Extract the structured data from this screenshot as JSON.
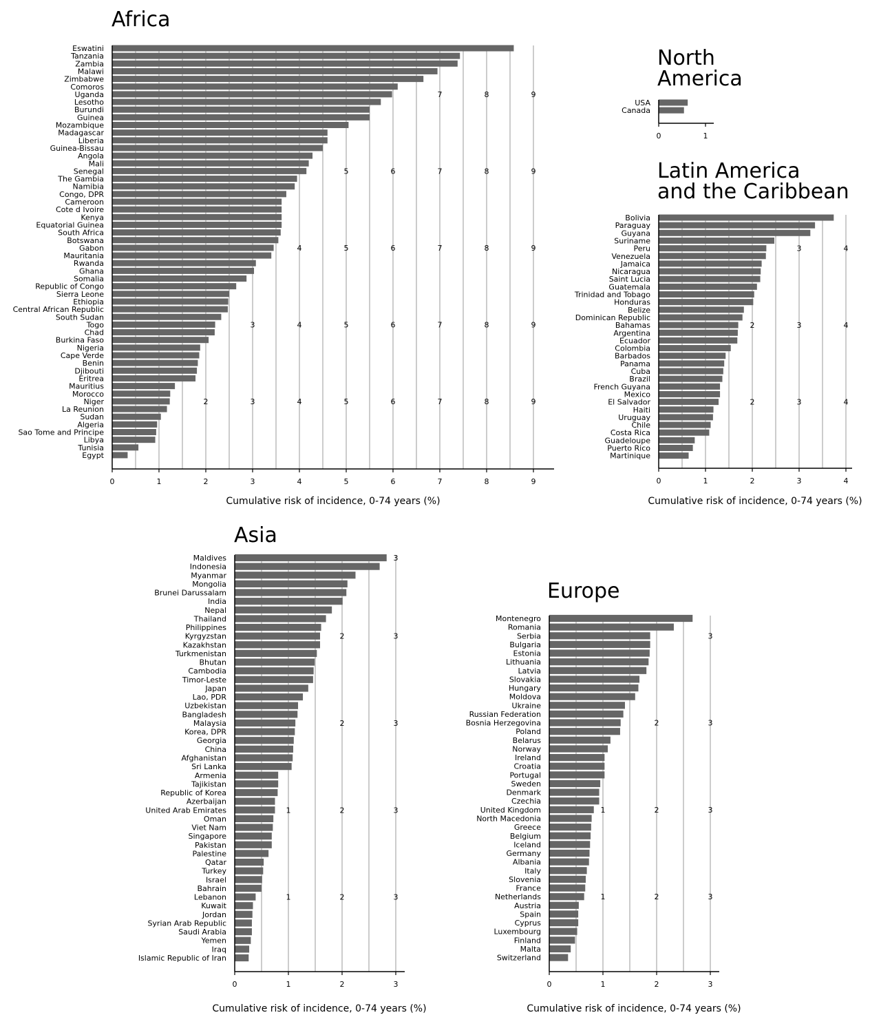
{
  "figure": {
    "colors": {
      "bar": "#666666",
      "grid": "#bfbfbf",
      "axis": "#000000",
      "background": "#ffffff"
    }
  },
  "chart_data": [
    {
      "type": "bar",
      "orientation": "horizontal",
      "title": "Africa",
      "xlabel": "Cumulative risk of incidence, 0-74 years (%)",
      "xlim": [
        0,
        9.3
      ],
      "xticks": [
        0,
        1,
        2,
        3,
        4,
        5,
        6,
        7,
        8,
        9
      ],
      "gridlines": [
        0.5,
        1,
        1.5,
        2,
        2.5,
        3,
        3.5,
        4,
        4.5,
        5,
        5.5,
        6,
        6.5,
        7,
        7.5,
        8,
        8.5,
        9
      ],
      "inline_tick_labels": [
        {
          "after_category": "Uganda",
          "labels": [
            7,
            8,
            9
          ]
        },
        {
          "after_category": "Senegal",
          "labels": [
            5,
            6,
            7,
            8,
            9
          ]
        },
        {
          "after_category": "Gabon",
          "labels": [
            4,
            5,
            6,
            7,
            8,
            9
          ]
        },
        {
          "after_category": "Togo",
          "labels": [
            3,
            4,
            5,
            6,
            7,
            8,
            9
          ]
        },
        {
          "after_category": "Niger",
          "labels": [
            2,
            3,
            4,
            5,
            6,
            7,
            8,
            9
          ]
        }
      ],
      "categories": [
        "Eswatini",
        "Tanzania",
        "Zambia",
        "Malawi",
        "Zimbabwe",
        "Comoros",
        "Uganda",
        "Lesotho",
        "Burundi",
        "Guinea",
        "Mozambique",
        "Madagascar",
        "Liberia",
        "Guinea-Bissau",
        "Angola",
        "Mali",
        "Senegal",
        "The Gambia",
        "Namibia",
        "Congo, DPR",
        "Cameroon",
        "Cote d Ivoire",
        "Kenya",
        "Equatorial Guinea",
        "South Africa",
        "Botswana",
        "Gabon",
        "Mauritania",
        "Rwanda",
        "Ghana",
        "Somalia",
        "Republic of Congo",
        "Sierra Leone",
        "Ethiopia",
        "Central African Republic",
        "South Sudan",
        "Togo",
        "Chad",
        "Burkina Faso",
        "Nigeria",
        "Cape Verde",
        "Benin",
        "Djibouti",
        "Eritrea",
        "Mauritius",
        "Morocco",
        "Niger",
        "La Reunion",
        "Sudan",
        "Algeria",
        "Sao Tome and Principe",
        "Libya",
        "Tunisia",
        "Egypt"
      ],
      "values": [
        8.58,
        7.43,
        7.38,
        6.95,
        6.65,
        6.1,
        5.98,
        5.74,
        5.5,
        5.5,
        5.05,
        4.6,
        4.6,
        4.5,
        4.28,
        4.2,
        4.15,
        3.95,
        3.9,
        3.72,
        3.62,
        3.62,
        3.62,
        3.62,
        3.6,
        3.55,
        3.45,
        3.4,
        3.07,
        3.03,
        2.87,
        2.65,
        2.5,
        2.48,
        2.47,
        2.33,
        2.2,
        2.19,
        2.06,
        1.88,
        1.86,
        1.83,
        1.81,
        1.78,
        1.34,
        1.24,
        1.23,
        1.17,
        1.04,
        0.96,
        0.94,
        0.92,
        0.56,
        0.33
      ]
    },
    {
      "type": "bar",
      "orientation": "horizontal",
      "title": "North\nAmerica",
      "xlabel": "",
      "xlim": [
        0,
        1.17
      ],
      "xticks": [
        0,
        1
      ],
      "gridlines": [],
      "inline_tick_labels": [],
      "categories": [
        "USA",
        "Canada"
      ],
      "values": [
        0.62,
        0.54
      ]
    },
    {
      "type": "bar",
      "orientation": "horizontal",
      "title": "Latin America\nand the Caribbean",
      "xlabel": "Cumulative risk of incidence, 0-74 years (%)",
      "xlim": [
        0,
        4.12
      ],
      "xticks": [
        0,
        1,
        2,
        3,
        4
      ],
      "gridlines": [
        0.5,
        1,
        1.5,
        2,
        2.5,
        3,
        3.5,
        4
      ],
      "inline_tick_labels": [
        {
          "after_category": "Peru",
          "labels": [
            3,
            4
          ]
        },
        {
          "after_category": "Bahamas",
          "labels": [
            2,
            3,
            4
          ]
        },
        {
          "after_category": "El Salvador",
          "labels": [
            2,
            3,
            4
          ]
        }
      ],
      "categories": [
        "Bolivia",
        "Paraguay",
        "Guyana",
        "Suriname",
        "Peru",
        "Venezuela",
        "Jamaica",
        "Nicaragua",
        "Saint Lucia",
        "Guatemala",
        "Trinidad and Tobago",
        "Honduras",
        "Belize",
        "Dominican Republic",
        "Bahamas",
        "Argentina",
        "Ecuador",
        "Colombia",
        "Barbados",
        "Panama",
        "Cuba",
        "Brazil",
        "French Guyana",
        "Mexico",
        "El Salvador",
        "Haiti",
        "Uruguay",
        "Chile",
        "Costa Rica",
        "Guadeloupe",
        "Puerto Rico",
        "Martinique"
      ],
      "values": [
        3.74,
        3.34,
        3.24,
        2.47,
        2.3,
        2.29,
        2.2,
        2.18,
        2.17,
        2.1,
        2.04,
        2.02,
        1.82,
        1.79,
        1.7,
        1.69,
        1.68,
        1.54,
        1.43,
        1.4,
        1.38,
        1.36,
        1.31,
        1.31,
        1.28,
        1.17,
        1.16,
        1.11,
        1.08,
        0.77,
        0.73,
        0.64
      ]
    },
    {
      "type": "bar",
      "orientation": "horizontal",
      "title": "Asia",
      "xlabel": "Cumulative risk of incidence, 0-74 years (%)",
      "xlim": [
        0,
        3.16
      ],
      "xticks": [
        0,
        1,
        2,
        3
      ],
      "gridlines": [
        0.5,
        1,
        1.5,
        2,
        2.5,
        3
      ],
      "inline_tick_labels": [
        {
          "after_category": "Maldives",
          "labels": [
            3
          ]
        },
        {
          "after_category": "Kyrgyzstan",
          "labels": [
            2,
            3
          ]
        },
        {
          "after_category": "Malaysia",
          "labels": [
            2,
            3
          ]
        },
        {
          "after_category": "United Arab Emirates",
          "labels": [
            1,
            2,
            3
          ]
        },
        {
          "after_category": "Lebanon",
          "labels": [
            1,
            2,
            3
          ]
        }
      ],
      "categories": [
        "Maldives",
        "Indonesia",
        "Myanmar",
        "Mongolia",
        "Brunei Darussalam",
        "India",
        "Nepal",
        "Thailand",
        "Philippines",
        "Kyrgyzstan",
        "Kazakhstan",
        "Turkmenistan",
        "Bhutan",
        "Cambodia",
        "Timor-Leste",
        "Japan",
        "Lao, PDR",
        "Uzbekistan",
        "Bangladesh",
        "Malaysia",
        "Korea, DPR",
        "Georgia",
        "China",
        "Afghanistan",
        "Sri Lanka",
        "Armenia",
        "Tajikistan",
        "Republic of Korea",
        "Azerbaijan",
        "United Arab Emirates",
        "Oman",
        "Viet Nam",
        "Singapore",
        "Pakistan",
        "Palestine",
        "Qatar",
        "Turkey",
        "Israel",
        "Bahrain",
        "Lebanon",
        "Kuwait",
        "Jordan",
        "Syrian Arab Republic",
        "Saudi Arabia",
        "Yemen",
        "Iraq",
        "Islamic Republic of Iran"
      ],
      "values": [
        2.83,
        2.7,
        2.25,
        2.1,
        2.08,
        2.01,
        1.81,
        1.7,
        1.61,
        1.59,
        1.59,
        1.53,
        1.49,
        1.47,
        1.46,
        1.37,
        1.27,
        1.18,
        1.17,
        1.13,
        1.12,
        1.1,
        1.09,
        1.08,
        1.06,
        0.81,
        0.81,
        0.8,
        0.75,
        0.75,
        0.72,
        0.71,
        0.69,
        0.69,
        0.63,
        0.54,
        0.53,
        0.51,
        0.5,
        0.39,
        0.34,
        0.33,
        0.32,
        0.32,
        0.3,
        0.27,
        0.26
      ]
    },
    {
      "type": "bar",
      "orientation": "horizontal",
      "title": "Europe",
      "xlabel": "Cumulative risk of incidence, 0-74 years (%)",
      "xlim": [
        0,
        3.16
      ],
      "xticks": [
        0,
        1,
        2,
        3
      ],
      "gridlines": [
        0.5,
        1,
        1.5,
        2,
        2.5,
        3
      ],
      "inline_tick_labels": [
        {
          "after_category": "Serbia",
          "labels": [
            3
          ]
        },
        {
          "after_category": "Bosnia Herzegovina",
          "labels": [
            2,
            3
          ]
        },
        {
          "after_category": "United Kingdom",
          "labels": [
            1,
            2,
            3
          ]
        },
        {
          "after_category": "Netherlands",
          "labels": [
            1,
            2,
            3
          ]
        }
      ],
      "categories": [
        "Montenegro",
        "Romania",
        "Serbia",
        "Bulgaria",
        "Estonia",
        "Lithuania",
        "Latvia",
        "Slovakia",
        "Hungary",
        "Moldova",
        "Ukraine",
        "Russian Federation",
        "Bosnia Herzegovina",
        "Poland",
        "Belarus",
        "Norway",
        "Ireland",
        "Croatia",
        "Portugal",
        "Sweden",
        "Denmark",
        "Czechia",
        "United Kingdom",
        "North Macedonia",
        "Greece",
        "Belgium",
        "Iceland",
        "Germany",
        "Albania",
        "Italy",
        "Slovenia",
        "France",
        "Netherlands",
        "Austria",
        "Spain",
        "Cyprus",
        "Luxembourg",
        "Finland",
        "Malta",
        "Switzerland"
      ],
      "values": [
        2.67,
        2.32,
        1.88,
        1.88,
        1.87,
        1.85,
        1.81,
        1.68,
        1.66,
        1.6,
        1.41,
        1.38,
        1.33,
        1.32,
        1.14,
        1.09,
        1.03,
        1.03,
        1.03,
        0.95,
        0.93,
        0.93,
        0.83,
        0.79,
        0.78,
        0.77,
        0.76,
        0.75,
        0.74,
        0.7,
        0.68,
        0.67,
        0.65,
        0.55,
        0.54,
        0.54,
        0.52,
        0.48,
        0.4,
        0.35
      ]
    }
  ]
}
